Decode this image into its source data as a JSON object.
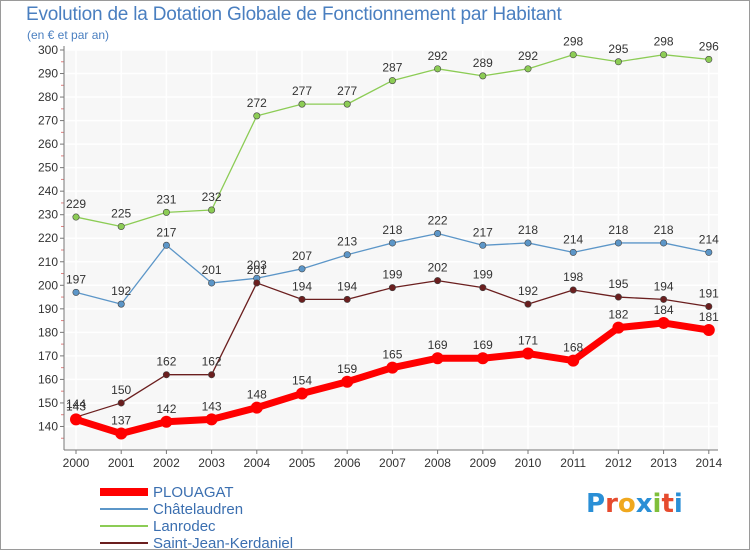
{
  "header": {
    "title": "Evolution de la Dotation Globale de Fonctionnement par Habitant",
    "subtitle": "(en € et par an)"
  },
  "logo": {
    "text": "Proxiti",
    "letter_colors": [
      "#2a8fd6",
      "#e64b2e",
      "#f0a81e",
      "#2a8fd6",
      "#7fbf3a",
      "#e64b2e",
      "#2a8fd6"
    ]
  },
  "chart_data": {
    "type": "line",
    "x": [
      2000,
      2001,
      2002,
      2003,
      2004,
      2005,
      2006,
      2007,
      2008,
      2009,
      2010,
      2011,
      2012,
      2013,
      2014
    ],
    "ylim": [
      130,
      300
    ],
    "yticks": [
      140,
      150,
      160,
      170,
      180,
      190,
      200,
      210,
      220,
      230,
      240,
      250,
      260,
      270,
      280,
      290,
      300
    ],
    "grid": true,
    "legend_position": "bottom-left",
    "series": [
      {
        "name": "Lanrodec",
        "color": "#8ccc55",
        "values": [
          229,
          225,
          231,
          232,
          272,
          277,
          277,
          287,
          292,
          289,
          292,
          298,
          295,
          298,
          296
        ]
      },
      {
        "name": "Châtelaudren",
        "color": "#5c96c8",
        "values": [
          197,
          192,
          217,
          201,
          203,
          207,
          213,
          218,
          222,
          217,
          218,
          214,
          218,
          218,
          214
        ]
      },
      {
        "name": "Saint-Jean-Kerdaniel",
        "color": "#6b1f1f",
        "values": [
          144,
          150,
          162,
          162,
          201,
          194,
          194,
          199,
          202,
          199,
          192,
          198,
          195,
          194,
          191
        ]
      },
      {
        "name": "PLOUAGAT",
        "color": "#ff0000",
        "values": [
          143,
          137,
          142,
          143,
          148,
          154,
          159,
          165,
          169,
          169,
          171,
          168,
          182,
          184,
          181
        ]
      }
    ],
    "legend_order": [
      "PLOUAGAT",
      "Châtelaudren",
      "Lanrodec",
      "Saint-Jean-Kerdaniel"
    ]
  }
}
